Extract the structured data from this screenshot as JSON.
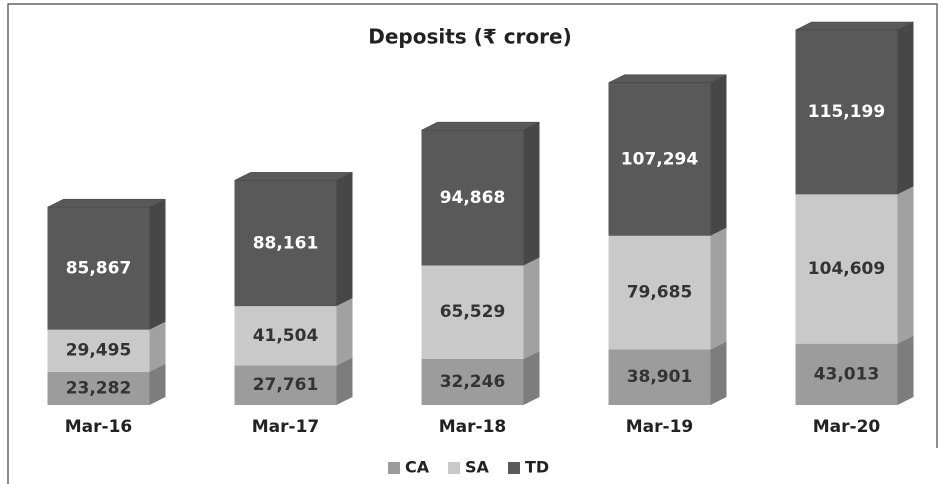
{
  "chart_data": {
    "type": "bar3d_stacked",
    "title": "Deposits (₹ crore)",
    "categories": [
      "Mar-16",
      "Mar-17",
      "Mar-18",
      "Mar-19",
      "Mar-20"
    ],
    "series": [
      {
        "name": "CA",
        "color": "#9c9c9c",
        "values": [
          23282,
          27761,
          32246,
          38901,
          43013
        ],
        "value_labels": [
          "23,282",
          "27,761",
          "32,246",
          "38,901",
          "43,013"
        ]
      },
      {
        "name": "SA",
        "color": "#c9c9c9",
        "values": [
          29495,
          41504,
          65529,
          79685,
          104609
        ],
        "value_labels": [
          "29,495",
          "41,504",
          "65,529",
          "79,685",
          "104,609"
        ]
      },
      {
        "name": "TD",
        "color": "#595959",
        "values": [
          85867,
          88161,
          94868,
          107294,
          115199
        ],
        "value_labels": [
          "85,867",
          "88,161",
          "94,868",
          "107,294",
          "115,199"
        ]
      }
    ],
    "legend": "bottom"
  }
}
